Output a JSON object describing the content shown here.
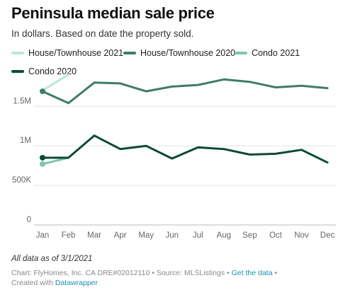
{
  "title": "Peninsula median sale price",
  "subtitle": "In dollars. Based on date the property sold.",
  "note": "All data as of 3/1/2021",
  "credits": {
    "chart_prefix": "Chart: FlyHomes, Inc. CA DRE#02012110 • Source: MLSListings • ",
    "get_data_link": "Get the data",
    "after_link": " •",
    "created_with": "Created with ",
    "datawrapper_link": "Datawrapper"
  },
  "chart_data": {
    "type": "line",
    "title": "Peninsula median sale price",
    "subtitle": "In dollars. Based on date the property sold.",
    "categories": [
      "Jan",
      "Feb",
      "Mar",
      "Apr",
      "May",
      "Jun",
      "Jul",
      "Aug",
      "Sep",
      "Oct",
      "Nov",
      "Dec"
    ],
    "y_ticks": [
      0,
      500000,
      1000000,
      1500000
    ],
    "y_tick_labels": [
      "0",
      "500K",
      "1M",
      "1.5M"
    ],
    "ylim": [
      0,
      1950000
    ],
    "grid": true,
    "legend_position": "top",
    "series": [
      {
        "name": "House/Townhouse 2021",
        "color": "#b9e8d6",
        "values": [
          1700000,
          1900000,
          null,
          null,
          null,
          null,
          null,
          null,
          null,
          null,
          null,
          null
        ],
        "end_marker": false
      },
      {
        "name": "House/Townhouse 2020",
        "color": "#3f7b6b",
        "values": [
          1690000,
          1540000,
          1800000,
          1790000,
          1690000,
          1750000,
          1770000,
          1840000,
          1810000,
          1740000,
          1760000,
          1730000
        ],
        "end_marker": true
      },
      {
        "name": "Condo 2021",
        "color": "#7fc5ab",
        "values": [
          770000,
          850000,
          null,
          null,
          null,
          null,
          null,
          null,
          null,
          null,
          null,
          null
        ],
        "end_marker": true
      },
      {
        "name": "Condo 2020",
        "color": "#0b4a35",
        "values": [
          850000,
          850000,
          1130000,
          960000,
          1000000,
          840000,
          980000,
          960000,
          890000,
          900000,
          950000,
          790000
        ],
        "end_marker": true
      }
    ]
  }
}
